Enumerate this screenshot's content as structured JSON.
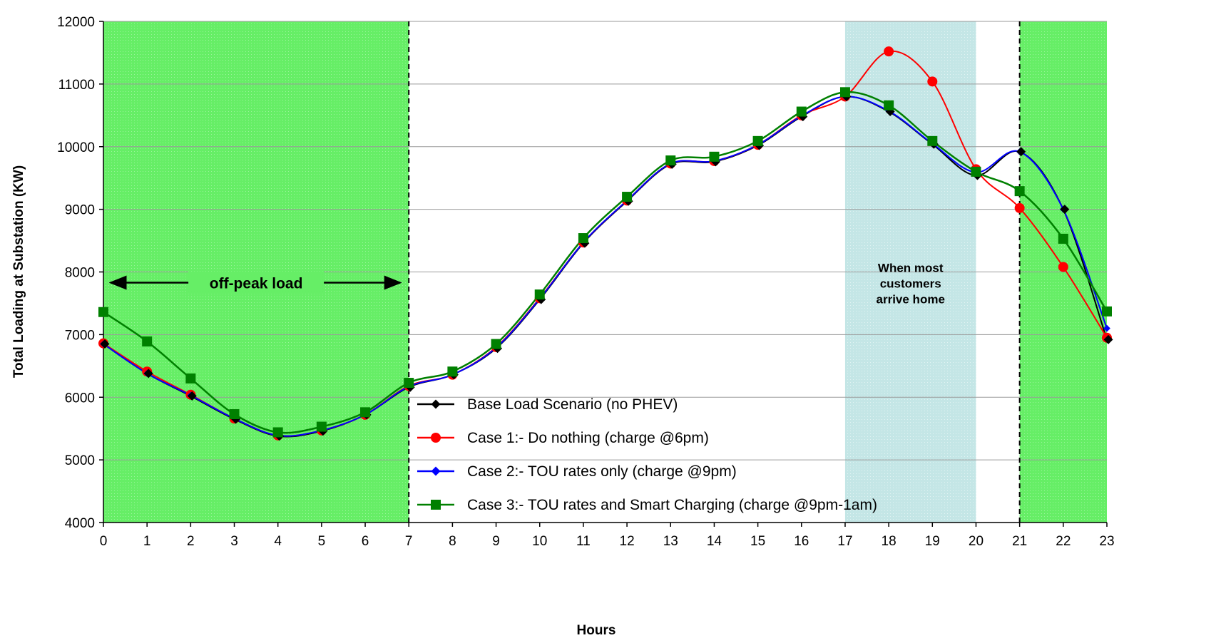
{
  "chart_data": {
    "type": "line",
    "title": "",
    "xlabel": "Hours",
    "ylabel": "Total Loading at Substation (KW)",
    "x": [
      0,
      1,
      2,
      3,
      4,
      5,
      6,
      7,
      8,
      9,
      10,
      11,
      12,
      13,
      14,
      15,
      16,
      17,
      18,
      19,
      20,
      21,
      22,
      23
    ],
    "xlim": [
      0,
      23
    ],
    "ylim": [
      4000,
      12000
    ],
    "yticks": [
      4000,
      5000,
      6000,
      7000,
      8000,
      9000,
      10000,
      11000,
      12000
    ],
    "grid": "horizontal",
    "legend_position": "bottom-center",
    "series": [
      {
        "name": "Base Load Scenario (no PHEV)",
        "color": "#000000",
        "marker": "diamond",
        "values": [
          6850,
          6380,
          6020,
          5650,
          5380,
          5460,
          5720,
          6160,
          6360,
          6780,
          7560,
          8460,
          9130,
          9720,
          9760,
          10020,
          10480,
          10800,
          10560,
          10040,
          9540,
          9920,
          9000,
          6920
        ]
      },
      {
        "name": "Case 1:- Do nothing (charge @6pm)",
        "color": "#ff0000",
        "marker": "circle",
        "values": [
          6860,
          6410,
          6040,
          5660,
          5390,
          5470,
          5720,
          6180,
          6360,
          6800,
          7580,
          8470,
          9140,
          9730,
          9770,
          10030,
          10500,
          10800,
          11520,
          11040,
          9640,
          9020,
          8080,
          6950
        ]
      },
      {
        "name": "Case 2:- TOU rates only (charge @9pm)",
        "color": "#0000ff",
        "marker": "diamond",
        "values": [
          6850,
          6380,
          6030,
          5660,
          5390,
          5470,
          5720,
          6170,
          6360,
          6790,
          7570,
          8470,
          9140,
          9730,
          9770,
          10030,
          10490,
          10800,
          10570,
          10050,
          9590,
          9920,
          9000,
          7100
        ]
      },
      {
        "name": "Case 3:- TOU rates and Smart Charging (charge @9pm-1am)",
        "color": "#008000",
        "marker": "square",
        "values": [
          7360,
          6890,
          6300,
          5730,
          5440,
          5530,
          5760,
          6230,
          6410,
          6850,
          7640,
          8540,
          9200,
          9780,
          9840,
          10090,
          10560,
          10870,
          10660,
          10090,
          9600,
          9290,
          8530,
          7370
        ]
      }
    ],
    "annotations": [
      {
        "text": "off-peak load",
        "kind": "double-arrow",
        "from_x": 0,
        "to_x": 7,
        "y": 7920
      },
      {
        "text": "When most customers arrive home",
        "lines": [
          "When most",
          "customers",
          "arrive home"
        ],
        "x": 18.5,
        "y": 7850
      }
    ],
    "shaded_regions": [
      {
        "from_x": 0,
        "to_x": 7,
        "color": "#66ee66"
      },
      {
        "from_x": 17,
        "to_x": 20,
        "color": "#c4e6e6"
      },
      {
        "from_x": 21,
        "to_x": 23,
        "color": "#66ee66"
      }
    ],
    "vertical_lines": [
      7,
      21
    ]
  }
}
